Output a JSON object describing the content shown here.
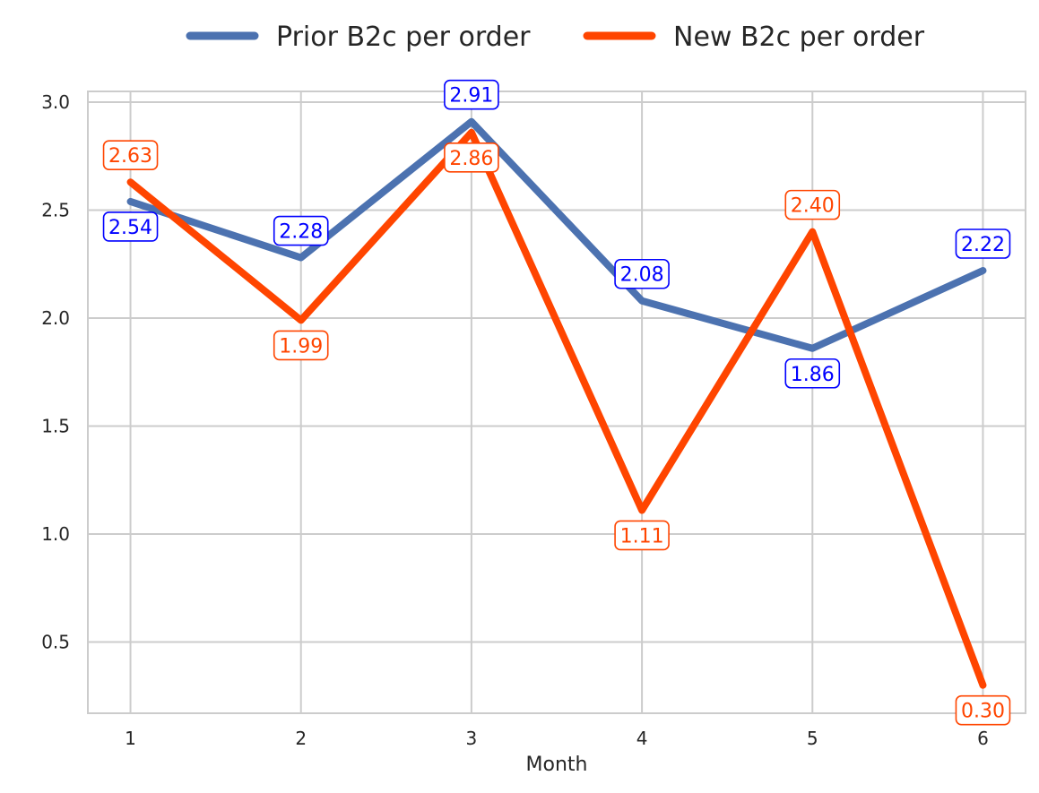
{
  "chart_data": {
    "type": "line",
    "title": "",
    "xlabel": "Month",
    "ylabel": "",
    "x": [
      1,
      2,
      3,
      4,
      5,
      6
    ],
    "x_tick_labels": [
      "1",
      "2",
      "3",
      "4",
      "5",
      "6"
    ],
    "y_tick_values": [
      0.5,
      1.0,
      1.5,
      2.0,
      2.5,
      3.0
    ],
    "y_tick_labels": [
      "0.5",
      "1.0",
      "1.5",
      "2.0",
      "2.5",
      "3.0"
    ],
    "xlim": [
      0.75,
      6.25
    ],
    "ylim": [
      0.17,
      3.05
    ],
    "grid": true,
    "legend_position": "top-center",
    "series": [
      {
        "name": "Prior B2c per order",
        "color": "#4c72b0",
        "label_color": "#0000ff",
        "values": [
          2.54,
          2.28,
          2.91,
          2.08,
          1.86,
          2.22
        ],
        "data_labels": [
          "2.54",
          "2.28",
          "2.91",
          "2.08",
          "1.86",
          "2.22"
        ]
      },
      {
        "name": "New B2c per order",
        "color": "#ff4500",
        "label_color": "#ff4500",
        "values": [
          2.63,
          1.99,
          2.86,
          1.11,
          2.4,
          0.3
        ],
        "data_labels": [
          "2.63",
          "1.99",
          "2.86",
          "1.11",
          "2.40",
          "0.30"
        ]
      }
    ]
  }
}
